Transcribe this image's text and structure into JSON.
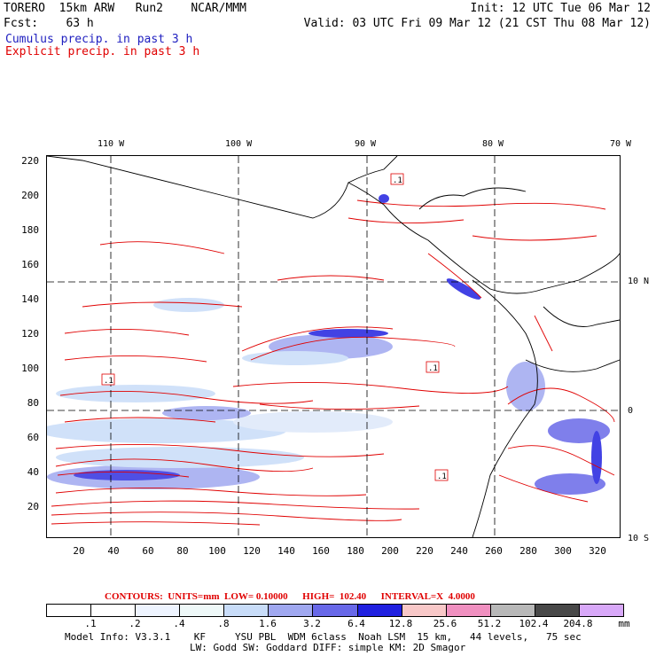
{
  "header": {
    "line1_left": "TORERO  15km ARW   Run2    NCAR/MMM",
    "line1_right": "Init: 12 UTC Tue 06 Mar 12",
    "line2_left": "Fcst:    63 h",
    "line2_right": "Valid: 03 UTC Fri 09 Mar 12 (21 CST Thu 08 Mar 12)",
    "legend_cumulus": "Cumulus precip. in past 3 h",
    "legend_explicit": "Explicit precip. in past 3 h"
  },
  "map": {
    "lon_labels": [
      "110 W",
      "100 W",
      "90 W",
      "80 W",
      "70 W"
    ],
    "lat_labels": [
      "10 N",
      "0",
      "10 S"
    ],
    "y_ticks": [
      "220",
      "200",
      "180",
      "160",
      "140",
      "120",
      "100",
      "80",
      "60",
      "40",
      "20"
    ],
    "x_ticks": [
      "20",
      "40",
      "60",
      "80",
      "100",
      "120",
      "140",
      "160",
      "180",
      "200",
      "220",
      "240",
      "260",
      "280",
      "300",
      "320"
    ],
    "contour_labels": [
      ".1",
      ".1",
      ".1",
      ".1"
    ]
  },
  "footer": {
    "contours_line": "CONTOURS:  UNITS=mm  LOW= 0.10000      HIGH=  102.40      INTERVAL=X  4.0000",
    "colorbar_labels": [
      ".1",
      ".2",
      ".4",
      ".8",
      "1.6",
      "3.2",
      "6.4",
      "12.8",
      "25.6",
      "51.2",
      "102.4",
      "204.8"
    ],
    "colorbar_unit": "mm",
    "colorbar_colors": [
      "#ffffff",
      "#ffffff",
      "#eef4ff",
      "#eef8f8",
      "#c8dcf8",
      "#a0a8f0",
      "#6868e8",
      "#2020e0",
      "#f8c8c8",
      "#f090c0",
      "#b8b8b8",
      "#484848",
      "#d8a8f8"
    ],
    "model_info_1": "Model Info: V3.3.1    KF     YSU PBL  WDM 6class  Noah LSM  15 km,   44 levels,   75 sec",
    "model_info_2": "LW: Godd SW: Goddard DIFF: simple KM: 2D Smagor"
  }
}
